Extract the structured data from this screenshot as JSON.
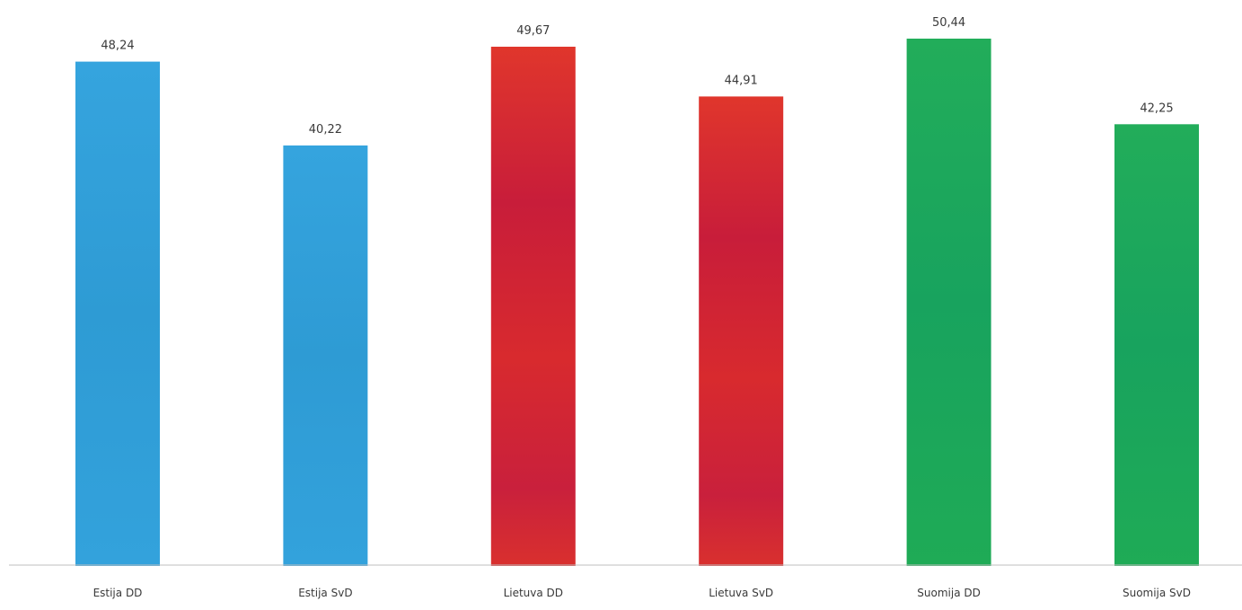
{
  "chart_data": {
    "type": "bar",
    "title": "",
    "xlabel": "",
    "ylabel": "",
    "categories": [
      "Estija DD",
      "Estija SvD",
      "Lietuva DD",
      "Lietuva SvD",
      "Suomija DD",
      "Suomija SvD"
    ],
    "values": [
      48.24,
      40.22,
      49.67,
      44.91,
      50.44,
      42.25
    ],
    "data_labels": [
      "48,24",
      "40,22",
      "49,67",
      "44,91",
      "50,44",
      "42,25"
    ],
    "colors": [
      "#2f9fd8",
      "#2f9fd8",
      "#d4242f",
      "#d4242f",
      "#1aa85c",
      "#1aa85c"
    ],
    "ylim": [
      0,
      52
    ],
    "grid": false,
    "legend": "none"
  }
}
